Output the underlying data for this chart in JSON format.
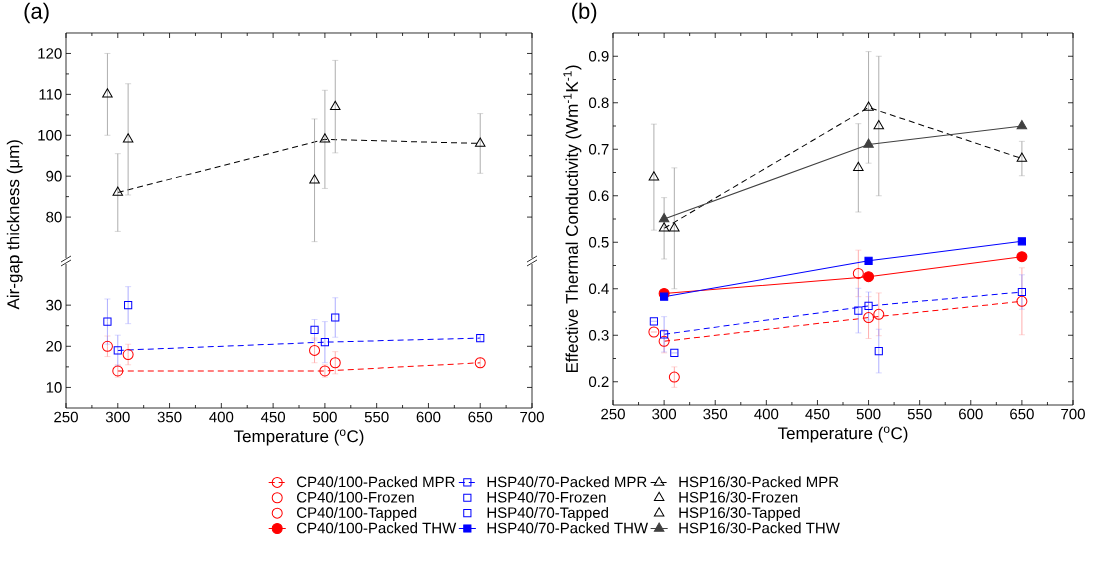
{
  "chart_data": [
    {
      "type": "scatter",
      "title": "(a)",
      "ylabel": "Air-gap thickness (μm)",
      "xlim": [
        250,
        700
      ],
      "ylim": [
        70,
        125
      ],
      "xticks": [
        250,
        300,
        350,
        400,
        450,
        500,
        550,
        600,
        650,
        700
      ],
      "yticks": [
        80,
        90,
        100,
        110,
        120
      ],
      "tick_labels": "y",
      "series": [
        {
          "type": "line",
          "line_style": "dashed",
          "marker": "triangle",
          "color": "#000000",
          "x": [
            300,
            500,
            650
          ],
          "values": [
            86,
            99,
            98
          ],
          "errors": [
            9.5,
            12,
            7.3
          ]
        },
        {
          "marker": "triangle",
          "color": "#000000",
          "x": [
            310,
            510
          ],
          "values": [
            99,
            107
          ],
          "errors": [
            13.6,
            11.3
          ]
        },
        {
          "marker": "triangle",
          "color": "#000000",
          "x": [
            290,
            490
          ],
          "values": [
            110,
            89
          ],
          "errors": [
            10,
            15
          ]
        }
      ]
    },
    {
      "type": "scatter",
      "xlabel": "Temperature ($^{o}$C)",
      "xlim": [
        250,
        700
      ],
      "ylim": [
        5,
        40
      ],
      "xticks": [
        250,
        300,
        350,
        400,
        450,
        500,
        550,
        600,
        650,
        700
      ],
      "yticks": [
        10,
        20,
        30
      ],
      "series": [
        {
          "type": "line",
          "line_style": "dashed",
          "marker": "circle",
          "color": "#ff0000",
          "x": [
            300,
            500,
            650
          ],
          "values": [
            14,
            14,
            16
          ],
          "errors": [
            1.5,
            1.5,
            1.2
          ]
        },
        {
          "type": "line",
          "line_style": "dashed",
          "marker": "square",
          "color": "#0000ff",
          "x": [
            300,
            500,
            650
          ],
          "values": [
            19,
            21,
            22
          ],
          "errors": [
            3.7,
            5,
            0.8
          ]
        },
        {
          "marker": "circle",
          "color": "#ff0000",
          "x": [
            310,
            510
          ],
          "values": [
            18,
            16
          ],
          "errors": [
            2.5,
            2.7
          ]
        },
        {
          "marker": "square",
          "color": "#0000ff",
          "x": [
            310,
            510
          ],
          "values": [
            30,
            27
          ],
          "errors": [
            4.5,
            4.8
          ]
        },
        {
          "marker": "circle",
          "color": "#ff0000",
          "x": [
            290,
            490
          ],
          "values": [
            20,
            19
          ],
          "errors": [
            2.5,
            3
          ]
        },
        {
          "marker": "square",
          "color": "#0000ff",
          "x": [
            290,
            490
          ],
          "values": [
            26,
            24
          ],
          "errors": [
            5.5,
            2.5
          ]
        }
      ]
    },
    {
      "type": "scatter",
      "title": "(b)",
      "xlabel": "Temperature ($^{o}$C)",
      "ylabel": "Effective Thermal Conductivity (Wm$^{-1}$K$^{-1}$)",
      "xlim": [
        250,
        700
      ],
      "ylim": [
        0.15,
        0.95
      ],
      "xticks": [
        250,
        300,
        350,
        400,
        450,
        500,
        550,
        600,
        650,
        700
      ],
      "yticks": [
        0.2,
        0.3,
        0.4,
        0.5,
        0.6,
        0.7,
        0.8,
        0.9
      ],
      "legend": "bottom",
      "series": [
        {
          "name": "CP40/100-Packed MPR",
          "type": "line",
          "line_style": "dashed",
          "marker": "circle",
          "color": "#ff0000",
          "x": [
            300,
            500,
            650
          ],
          "values": [
            0.287,
            0.338,
            0.373
          ],
          "errors": [
            0.025,
            0.045,
            0.072
          ]
        },
        {
          "name": "HSP40/70-Packed MPR",
          "type": "line",
          "line_style": "dashed",
          "marker": "square",
          "color": "#0000ff",
          "x": [
            300,
            500,
            650
          ],
          "values": [
            0.302,
            0.363,
            0.393
          ],
          "errors": [
            0.038,
            0.03,
            0.037
          ]
        },
        {
          "name": "HSP16/30-Packed MPR",
          "type": "line",
          "line_style": "dashed",
          "marker": "triangle",
          "color": "#000000",
          "x": [
            300,
            500,
            650
          ],
          "values": [
            0.53,
            0.79,
            0.68
          ],
          "errors": [
            0.066,
            0.12,
            0.037
          ]
        },
        {
          "name": "CP40/100-Frozen",
          "marker": "circle",
          "color": "#ff0000",
          "x": [
            310,
            510
          ],
          "values": [
            0.21,
            0.345
          ],
          "errors": [
            0.022,
            0.046
          ]
        },
        {
          "name": "HSP40/70-Frozen",
          "marker": "square",
          "color": "#0000ff",
          "x": [
            310,
            510
          ],
          "values": [
            0.262,
            0.266
          ],
          "errors": [
            null,
            0.047
          ]
        },
        {
          "name": "HSP16/30-Frozen",
          "marker": "triangle",
          "color": "#000000",
          "x": [
            310,
            510
          ],
          "values": [
            0.53,
            0.75
          ],
          "errors": [
            0.13,
            0.15
          ]
        },
        {
          "name": "CP40/100-Tapped",
          "marker": "circle",
          "color": "#ff0000",
          "x": [
            290,
            490
          ],
          "values": [
            0.307,
            0.433
          ],
          "errors": [
            null,
            0.05
          ]
        },
        {
          "name": "HSP40/70-Tapped",
          "marker": "square",
          "color": "#0000ff",
          "x": [
            290,
            490
          ],
          "values": [
            0.33,
            0.353
          ],
          "errors": [
            null,
            0.048
          ]
        },
        {
          "name": "HSP16/30-Tapped",
          "marker": "triangle",
          "color": "#000000",
          "x": [
            290,
            490
          ],
          "values": [
            0.64,
            0.66
          ],
          "errors": [
            0.114,
            0.095
          ]
        },
        {
          "name": "CP40/100-Packed THW",
          "type": "line",
          "line_style": "solid",
          "marker": "circle",
          "color": "#ff0000",
          "x": [
            300,
            500,
            650
          ],
          "values": [
            0.39,
            0.426,
            0.469
          ]
        },
        {
          "name": "HSP40/70-Packed THW",
          "type": "line",
          "line_style": "solid",
          "marker": "square",
          "color": "#0000ff",
          "x": [
            300,
            500,
            650
          ],
          "values": [
            0.383,
            0.46,
            0.502
          ]
        },
        {
          "name": "HSP16/30-Packed THW",
          "type": "line",
          "line_style": "solid",
          "marker": "triangle",
          "color": "#404040",
          "x": [
            300,
            500,
            650
          ],
          "values": [
            0.55,
            0.71,
            0.75
          ]
        }
      ]
    }
  ]
}
